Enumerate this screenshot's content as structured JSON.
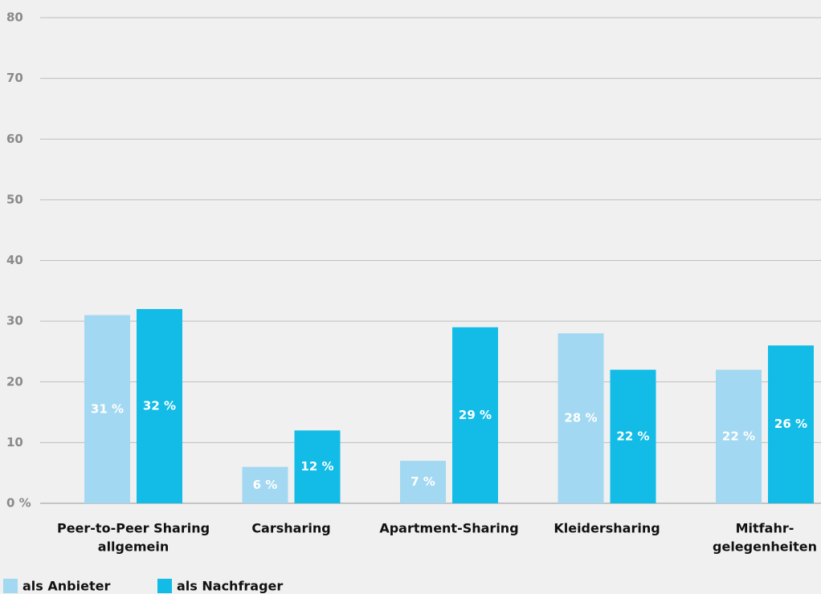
{
  "chart_data": {
    "type": "bar",
    "categories": [
      [
        "Peer-to-Peer Sharing",
        "allgemein"
      ],
      [
        "Carsharing"
      ],
      [
        "Apartment-Sharing"
      ],
      [
        "Kleidersharing"
      ],
      [
        "Mitfahr-",
        "gelegenheiten"
      ]
    ],
    "series": [
      {
        "name": "als Anbieter",
        "color": "#a2d8f1",
        "values": [
          31,
          6,
          7,
          28,
          22
        ],
        "value_labels": [
          "31 %",
          "6 %",
          "7 %",
          "28 %",
          "22 %"
        ]
      },
      {
        "name": "als Nachfrager",
        "color": "#12bce6",
        "values": [
          32,
          12,
          29,
          22,
          26
        ],
        "value_labels": [
          "32 %",
          "12 %",
          "29 %",
          "22 %",
          "26 %"
        ]
      }
    ],
    "ylim": [
      0,
      80
    ],
    "yticks": [
      {
        "value": 0,
        "label": "0 %"
      },
      10,
      20,
      30,
      40,
      50,
      60,
      70,
      80
    ],
    "grid": true,
    "legend": "bottom-left"
  }
}
